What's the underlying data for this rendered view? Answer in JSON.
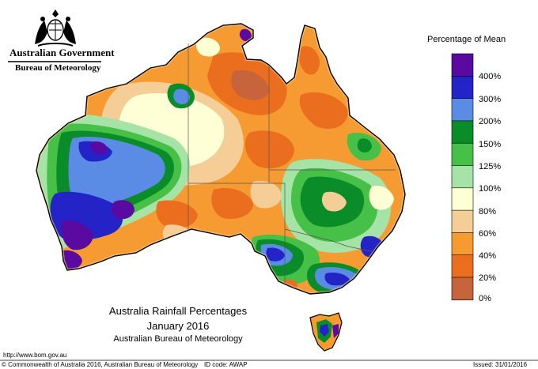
{
  "header": {
    "government": "Australian Government",
    "bureau": "Bureau of Meteorology"
  },
  "legend": {
    "title": "Percentage of Mean",
    "labels": [
      "400%",
      "300%",
      "200%",
      "150%",
      "125%",
      "100%",
      "80%",
      "60%",
      "40%",
      "20%",
      "0%"
    ],
    "colors": [
      "#5a0aa0",
      "#2323c8",
      "#5a8ce6",
      "#0a8c28",
      "#46c046",
      "#a6e3a6",
      "#ffffd6",
      "#f5cd96",
      "#f59b32",
      "#eb6e1e",
      "#c8643c"
    ]
  },
  "title": {
    "line1": "Australia Rainfall Percentages",
    "line2": "January 2016",
    "line3": "Australian Bureau of Meteorology"
  },
  "footer": {
    "url": "http://www.bom.gov.au",
    "copyright": "© Commonwealth of Australia 2016, Australian Bureau of Meteorology",
    "id_code": "ID code: AWAP",
    "issued": "Issued: 31/01/2016"
  }
}
